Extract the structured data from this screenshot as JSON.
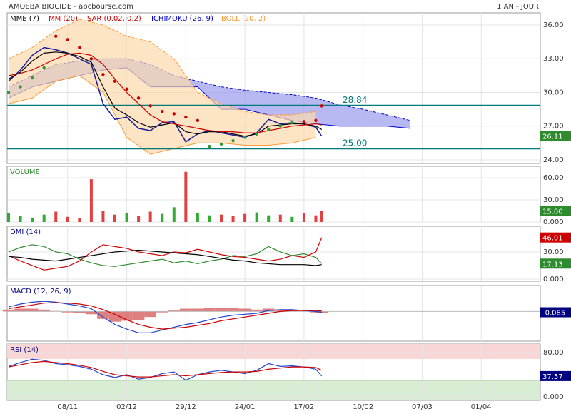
{
  "chart_data": [
    {
      "type": "stock",
      "title": "AMOEBA BIOCIDE - abcbourse.com",
      "period": "1 AN - JOUR",
      "xlim": [
        0,
        180
      ],
      "ylim": [
        23.68,
        37.08
      ],
      "color": "#1a1a99",
      "yticks": [
        {
          "value": 24,
          "label": "24.00"
        },
        {
          "value": 27,
          "label": "27.00"
        },
        {
          "value": 30,
          "label": "30.00"
        },
        {
          "value": 33,
          "label": "33.00"
        },
        {
          "value": 36,
          "label": "36.00"
        }
      ],
      "x": [
        0,
        4,
        8,
        12,
        16,
        20,
        24,
        28,
        32,
        36,
        40,
        44,
        48,
        52,
        56,
        60,
        64,
        68,
        72,
        76,
        80,
        84,
        88,
        92,
        96,
        100,
        104,
        106
      ],
      "values": [
        31.0,
        32.0,
        33.3,
        34.0,
        33.8,
        33.5,
        33.0,
        32.5,
        29.0,
        27.6,
        27.8,
        26.8,
        26.6,
        27.3,
        27.4,
        25.6,
        26.3,
        26.6,
        26.4,
        26.2,
        26.0,
        26.4,
        27.6,
        27.2,
        27.3,
        27.2,
        26.9,
        26.11
      ],
      "series": [
        {
          "name": "MME (7)",
          "color": "#000000",
          "style": "line",
          "values": [
            31.2,
            31.8,
            32.8,
            33.5,
            33.6,
            33.5,
            33.2,
            32.7,
            30.5,
            28.6,
            28.0,
            27.3,
            26.9,
            27.1,
            27.3,
            26.5,
            26.3,
            26.5,
            26.5,
            26.3,
            26.1,
            26.3,
            27.0,
            27.1,
            27.2,
            27.2,
            27.0,
            26.7
          ]
        },
        {
          "name": "MM (20)",
          "color": "#cc0000",
          "style": "line",
          "values": [
            31.5,
            31.7,
            32.0,
            32.5,
            33.0,
            33.4,
            33.5,
            33.3,
            32.5,
            31.2,
            30.0,
            29.0,
            28.0,
            27.4,
            27.2,
            27.0,
            26.8,
            26.6,
            26.5,
            26.5,
            26.4,
            26.4,
            26.6,
            26.8,
            27.0,
            27.1,
            27.2,
            27.1
          ]
        },
        {
          "name": "SAR (0.02, 0.2)",
          "color": "#cc0000",
          "color_below": "#339933",
          "style": "dots",
          "values": [
            30.0,
            30.5,
            31.3,
            32.2,
            35.0,
            34.7,
            34.0,
            33.0,
            31.6,
            31.0,
            30.3,
            29.5,
            28.8,
            28.3,
            28.1,
            27.8,
            27.5,
            25.2,
            25.4,
            25.7,
            26.0,
            26.3,
            26.7,
            27.0,
            27.3,
            27.4,
            27.5,
            28.8
          ]
        },
        {
          "name": "ICHIMOKU (26, 9)",
          "color": "#0000cc",
          "fill": "#9a9aee",
          "style": "band",
          "x": [
            0,
            8,
            16,
            24,
            32,
            40,
            48,
            56,
            64,
            72,
            80,
            88,
            96,
            104,
            112,
            120,
            128,
            136
          ],
          "upper": [
            30.5,
            31.5,
            32.5,
            32.8,
            33.0,
            33.0,
            32.5,
            31.5,
            31.0,
            30.5,
            30.2,
            30.0,
            29.8,
            29.5,
            28.9,
            28.5,
            28.0,
            27.5
          ],
          "lower": [
            29.5,
            30.5,
            31.0,
            31.5,
            32.0,
            32.2,
            30.5,
            30.5,
            30.5,
            28.5,
            28.5,
            28.0,
            27.5,
            27.2,
            27.0,
            27.0,
            27.0,
            26.8
          ]
        },
        {
          "name": "BOLL (20, 2)",
          "color": "#ff9933",
          "fill": "#fbd9ad",
          "style": "band",
          "x": [
            0,
            8,
            16,
            24,
            32,
            40,
            48,
            56,
            64,
            72,
            80,
            88,
            96,
            104
          ],
          "upper": [
            33,
            34,
            35.5,
            36.5,
            36,
            35,
            34.5,
            33,
            30,
            29,
            28.3,
            28,
            28,
            28.3
          ],
          "lower": [
            29,
            29.5,
            31,
            31.5,
            30,
            26,
            24.5,
            25,
            25.5,
            25.5,
            25.3,
            25.3,
            25.5,
            26
          ]
        }
      ],
      "annotations": [
        28.84,
        {
          "value": 25,
          "label": "25.00"
        }
      ],
      "annotation_color": "#007a7a",
      "badges": [
        26.11
      ],
      "badge_colors": [
        "#2e8b2e"
      ]
    },
    {
      "type": "volume",
      "label": "VOLUME",
      "label_color": "#2e8b2e",
      "xlim": [
        0,
        180
      ],
      "ylim": [
        0,
        75.5
      ],
      "yticks": [
        {
          "value": 0,
          "label": "0.000"
        },
        {
          "value": 30,
          "label": "30.00"
        },
        {
          "value": 60,
          "label": "60.00"
        }
      ],
      "x": [
        0,
        4,
        8,
        12,
        16,
        20,
        24,
        28,
        32,
        36,
        40,
        44,
        48,
        52,
        56,
        60,
        64,
        68,
        72,
        76,
        80,
        84,
        88,
        92,
        96,
        100,
        104,
        106
      ],
      "values": [
        12,
        8,
        6,
        10,
        14,
        7,
        5,
        58,
        15,
        10,
        12,
        8,
        14,
        11,
        20,
        68,
        12,
        9,
        10,
        8,
        11,
        13,
        9,
        10,
        7,
        12,
        9,
        15
      ],
      "up_color": "#33aa33",
      "down_color": "#e04040",
      "badges": [
        {
          "value": 15,
          "label": "15.00"
        }
      ],
      "badge_colors": [
        "#2e8b2e"
      ]
    },
    {
      "type": "lines",
      "label": "DMI (14)",
      "label_color": "#000080",
      "xlim": [
        0,
        180
      ],
      "ylim": [
        -2.4,
        58.4
      ],
      "yticks": [
        {
          "value": 0,
          "label": "0.000"
        },
        {
          "value": 30,
          "label": "30.00"
        }
      ],
      "x": [
        0,
        4,
        8,
        12,
        16,
        20,
        24,
        28,
        32,
        36,
        40,
        44,
        48,
        52,
        56,
        60,
        64,
        68,
        72,
        76,
        80,
        84,
        88,
        92,
        96,
        100,
        104,
        106
      ],
      "series": [
        {
          "color": "#2e8b2e",
          "style": "line",
          "values": [
            30,
            35,
            38,
            36,
            30,
            28,
            22,
            18,
            15,
            14,
            16,
            18,
            20,
            22,
            18,
            20,
            17,
            20,
            22,
            26,
            25,
            28,
            36,
            30,
            26,
            28,
            24,
            17.13
          ]
        },
        {
          "color": "#cc0000",
          "style": "line",
          "values": [
            26,
            20,
            15,
            10,
            12,
            14,
            20,
            30,
            38,
            36,
            34,
            30,
            28,
            26,
            30,
            29,
            33,
            30,
            27,
            25,
            24,
            22,
            20,
            22,
            26,
            24,
            30,
            46.01
          ]
        },
        {
          "color": "#000000",
          "style": "line",
          "values": [
            25,
            24,
            22,
            21,
            20,
            22,
            24,
            26,
            28,
            30,
            31,
            32,
            31,
            30,
            29,
            28,
            27,
            25,
            23,
            21,
            20,
            18,
            17,
            16,
            16,
            16,
            15,
            16
          ]
        }
      ],
      "badges": [
        46.01,
        17.13
      ],
      "badge_colors": [
        "#cc0000",
        "#2e8b2e"
      ]
    },
    {
      "type": "lines",
      "label": "MACD (12, 26, 9)",
      "label_color": "#000080",
      "xlim": [
        0,
        180
      ],
      "ylim": [
        -3.2,
        2.8
      ],
      "x": [
        0,
        4,
        8,
        12,
        16,
        20,
        24,
        28,
        32,
        36,
        40,
        44,
        48,
        52,
        56,
        60,
        64,
        68,
        72,
        76,
        80,
        84,
        88,
        92,
        96,
        100,
        104,
        106
      ],
      "histogram": [
        0.2,
        0.3,
        0.3,
        0.2,
        0.05,
        -0.1,
        -0.2,
        -0.3,
        -0.8,
        -1.1,
        -1.0,
        -0.9,
        -0.6,
        -0.1,
        0.1,
        0.3,
        0.3,
        0.4,
        0.4,
        0.4,
        0.3,
        0.2,
        0.3,
        0.2,
        0.1,
        0.0,
        -0.1,
        -0.135
      ],
      "histogram_color": "#d66060",
      "series": [
        {
          "color": "#2244cc",
          "style": "line",
          "values": [
            0.5,
            0.8,
            1.0,
            1.1,
            1.0,
            0.8,
            0.6,
            0.3,
            -0.6,
            -1.4,
            -1.9,
            -2.3,
            -2.3,
            -2.0,
            -1.7,
            -1.4,
            -1.2,
            -0.9,
            -0.6,
            -0.4,
            -0.3,
            -0.2,
            0.1,
            0.2,
            0.2,
            0.1,
            0.0,
            -0.085
          ]
        },
        {
          "color": "#cc0000",
          "style": "line",
          "values": [
            0.3,
            0.5,
            0.7,
            0.9,
            0.95,
            0.9,
            0.8,
            0.6,
            0.2,
            -0.3,
            -0.9,
            -1.4,
            -1.7,
            -1.9,
            -1.8,
            -1.7,
            -1.5,
            -1.3,
            -1.0,
            -0.8,
            -0.6,
            -0.4,
            -0.2,
            0.0,
            0.1,
            0.1,
            0.1,
            0.05
          ]
        }
      ],
      "badges": [
        -0.085
      ],
      "badge_colors": [
        "#000080"
      ]
    },
    {
      "type": "lines",
      "label": "RSI (14)",
      "label_color": "#000080",
      "xlim": [
        0,
        180
      ],
      "ylim": [
        -6.45,
        95.5
      ],
      "yticks": [
        {
          "value": 0,
          "label": "0.000"
        },
        {
          "value": 80,
          "label": "80.00"
        }
      ],
      "xticks": [
        {
          "value": 20,
          "label": "08/11"
        },
        {
          "value": 40,
          "label": "02/12"
        },
        {
          "value": 60,
          "label": "29/12"
        },
        {
          "value": 80,
          "label": "24/01"
        },
        {
          "value": 100,
          "label": "17/02"
        },
        {
          "value": 120,
          "label": "10/02"
        },
        {
          "value": 140,
          "label": "07/03"
        },
        {
          "value": 160,
          "label": "01/04"
        }
      ],
      "zones": [
        {
          "from": 70,
          "to": 95.5,
          "color": "#f9d6d6"
        },
        {
          "from": -6.45,
          "to": 30,
          "color": "#d9edd5"
        }
      ],
      "levels": [
        70,
        30
      ],
      "level_colors": [
        "#e07070",
        "#70b070"
      ],
      "x": [
        0,
        4,
        8,
        12,
        16,
        20,
        24,
        28,
        32,
        36,
        40,
        44,
        48,
        52,
        56,
        60,
        64,
        68,
        72,
        76,
        80,
        84,
        88,
        92,
        96,
        100,
        104,
        106
      ],
      "series": [
        {
          "color": "#2244cc",
          "style": "line",
          "values": [
            55,
            62,
            68,
            66,
            60,
            58,
            55,
            50,
            40,
            35,
            40,
            32,
            35,
            42,
            45,
            30,
            40,
            45,
            48,
            45,
            42,
            48,
            60,
            55,
            56,
            54,
            50,
            37.57
          ]
        },
        {
          "color": "#cc0000",
          "style": "line",
          "values": [
            54,
            58,
            62,
            64,
            62,
            60,
            57,
            53,
            46,
            40,
            38,
            36,
            36,
            38,
            40,
            38,
            40,
            42,
            44,
            45,
            45,
            46,
            50,
            52,
            54,
            54,
            53,
            48
          ]
        }
      ],
      "badges": [
        37.57
      ],
      "badge_colors": [
        "#000080"
      ]
    }
  ]
}
